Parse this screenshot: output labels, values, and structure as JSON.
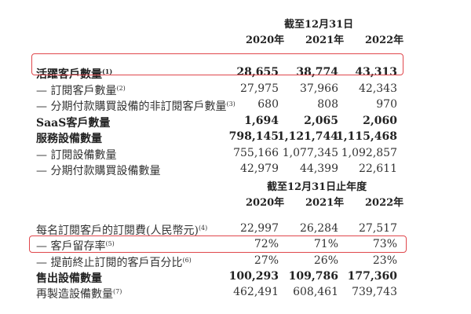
{
  "section1": {
    "header": "截至12月31日",
    "years": [
      "2020年",
      "2021年",
      "2022年"
    ],
    "rows": [
      {
        "label": "活躍客戶數量",
        "note": "(1)",
        "values": [
          "28,655",
          "38,774",
          "43,313"
        ],
        "bold": true,
        "highlighted": true
      },
      {
        "label": "— 訂閱客戶數量",
        "note": "(2)",
        "values": [
          "27,975",
          "37,966",
          "42,343"
        ],
        "bold": false
      },
      {
        "label": "— 分期付款購買設備的非訂閱客戶數量",
        "note": "(3)",
        "values": [
          "680",
          "808",
          "970"
        ],
        "bold": false
      },
      {
        "label": "SaaS客戶數量",
        "note": "",
        "values": [
          "1,694",
          "2,065",
          "2,060"
        ],
        "bold": true
      },
      {
        "label": "服務設備數量",
        "note": "",
        "values": [
          "798,145",
          "1,121,744",
          "1,115,468"
        ],
        "bold": true
      },
      {
        "label": "— 訂閱設備數量",
        "note": "",
        "values": [
          "755,166",
          "1,077,345",
          "1,092,857"
        ],
        "bold": false
      },
      {
        "label": "— 分期付款購買設備數量",
        "note": "",
        "values": [
          "42,979",
          "44,399",
          "22,611"
        ],
        "bold": false
      }
    ]
  },
  "section2": {
    "header": "截至12月31日止年度",
    "years": [
      "2020年",
      "2021年",
      "2022年"
    ],
    "rows": [
      {
        "label": "每名訂閱客戶的訂閱費(人民幣元)",
        "note": "(4)",
        "values": [
          "22,997",
          "26,284",
          "27,517"
        ],
        "bold": false
      },
      {
        "label": "— 客戶留存率",
        "note": "(5)",
        "values": [
          "72%",
          "71%",
          "73%"
        ],
        "bold": false,
        "highlighted": true
      },
      {
        "label": "— 提前終止訂閱的客戶百分比",
        "note": "(6)",
        "values": [
          "27%",
          "26%",
          "23%"
        ],
        "bold": false
      },
      {
        "label": "售出設備數量",
        "note": "",
        "values": [
          "100,293",
          "109,786",
          "177,360"
        ],
        "bold": true
      },
      {
        "label": "再製造設備數量",
        "note": "(7)",
        "values": [
          "462,491",
          "608,461",
          "739,743"
        ],
        "bold": false
      }
    ]
  },
  "colors": {
    "highlight_box": "#e0474c"
  }
}
